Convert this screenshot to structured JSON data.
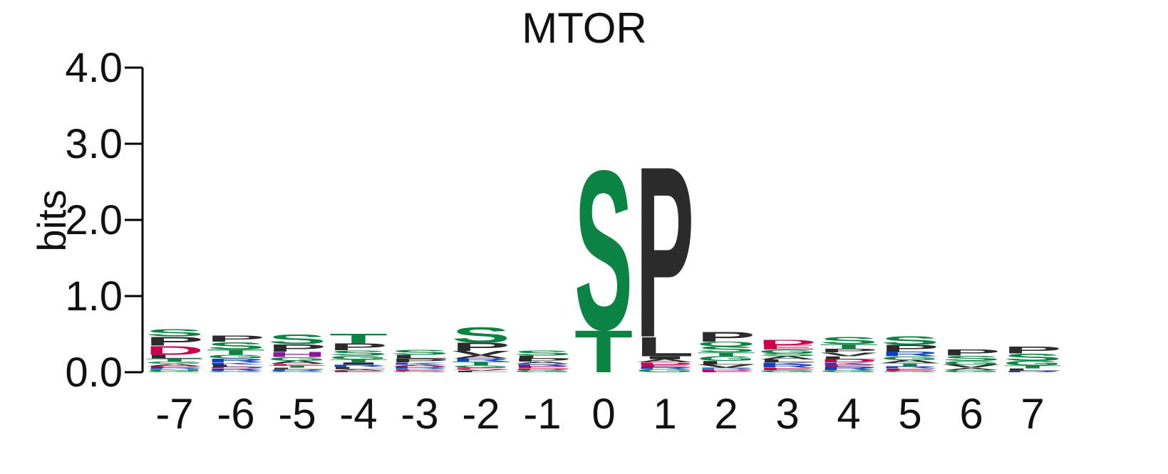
{
  "chart_data": {
    "type": "sequence_logo",
    "title": "MTOR",
    "xlabel": "",
    "ylabel": "bits",
    "ylim": [
      0,
      4
    ],
    "y_ticks": [
      "0.0",
      "1.0",
      "2.0",
      "3.0",
      "4.0"
    ],
    "categories": [
      "-7",
      "-6",
      "-5",
      "-4",
      "-3",
      "-2",
      "-1",
      "0",
      "1",
      "2",
      "3",
      "4",
      "5",
      "6",
      "7"
    ],
    "colors": {
      "S": "#0b8443",
      "T": "#0b8443",
      "G": "#0b8443",
      "Y": "#0b8443",
      "C": "#0b8443",
      "N": "#0b8443",
      "Q": "#0b8443",
      "P": "#2b2b2b",
      "L": "#2b2b2b",
      "V": "#2b2b2b",
      "I": "#2b2b2b",
      "A": "#2b2b2b",
      "M": "#2b2b2b",
      "W": "#2b2b2b",
      "F": "#2b2b2b",
      "D": "#c8004b",
      "E": "#c8004b",
      "R": "#1140c0",
      "K": "#1140c0",
      "H": "#8a1a9a"
    },
    "positions": [
      {
        "pos": "-7",
        "stack": [
          [
            "G",
            0.02
          ],
          [
            "N",
            0.02
          ],
          [
            "R",
            0.02
          ],
          [
            "E",
            0.02
          ],
          [
            "A",
            0.03
          ],
          [
            "G",
            0.03
          ],
          [
            "T",
            0.04
          ],
          [
            "L",
            0.05
          ],
          [
            "D",
            0.12
          ],
          [
            "P",
            0.12
          ],
          [
            "S",
            0.1
          ]
        ]
      },
      {
        "pos": "-6",
        "stack": [
          [
            "G",
            0.02
          ],
          [
            "R",
            0.03
          ],
          [
            "D",
            0.02
          ],
          [
            "L",
            0.03
          ],
          [
            "K",
            0.03
          ],
          [
            "R",
            0.05
          ],
          [
            "G",
            0.05
          ],
          [
            "T",
            0.07
          ],
          [
            "S",
            0.1
          ],
          [
            "P",
            0.08
          ]
        ]
      },
      {
        "pos": "-5",
        "stack": [
          [
            "G",
            0.02
          ],
          [
            "R",
            0.02
          ],
          [
            "L",
            0.02
          ],
          [
            "T",
            0.03
          ],
          [
            "E",
            0.02
          ],
          [
            "A",
            0.04
          ],
          [
            "G",
            0.05
          ],
          [
            "H",
            0.07
          ],
          [
            "P",
            0.1
          ],
          [
            "S",
            0.13
          ]
        ]
      },
      {
        "pos": "-4",
        "stack": [
          [
            "E",
            0.02
          ],
          [
            "A",
            0.02
          ],
          [
            "L",
            0.03
          ],
          [
            "R",
            0.03
          ],
          [
            "I",
            0.03
          ],
          [
            "T",
            0.04
          ],
          [
            "G",
            0.05
          ],
          [
            "S",
            0.07
          ],
          [
            "P",
            0.09
          ],
          [
            "T",
            0.13
          ]
        ]
      },
      {
        "pos": "-3",
        "stack": [
          [
            "G",
            0.02
          ],
          [
            "E",
            0.02
          ],
          [
            "R",
            0.02
          ],
          [
            "D",
            0.02
          ],
          [
            "A",
            0.02
          ],
          [
            "K",
            0.03
          ],
          [
            "P",
            0.05
          ],
          [
            "L",
            0.05
          ],
          [
            "S",
            0.07
          ]
        ]
      },
      {
        "pos": "-2",
        "stack": [
          [
            "L",
            0.02
          ],
          [
            "V",
            0.02
          ],
          [
            "E",
            0.02
          ],
          [
            "G",
            0.03
          ],
          [
            "T",
            0.05
          ],
          [
            "R",
            0.04
          ],
          [
            "A",
            0.04
          ],
          [
            "V",
            0.06
          ],
          [
            "P",
            0.11
          ],
          [
            "S",
            0.21
          ]
        ]
      },
      {
        "pos": "-1",
        "stack": [
          [
            "G",
            0.03
          ],
          [
            "D",
            0.02
          ],
          [
            "E",
            0.03
          ],
          [
            "R",
            0.03
          ],
          [
            "A",
            0.03
          ],
          [
            "P",
            0.04
          ],
          [
            "L",
            0.04
          ],
          [
            "S",
            0.07
          ]
        ]
      },
      {
        "pos": "0",
        "stack": [
          [
            "T",
            0.57
          ],
          [
            "S",
            2.15
          ]
        ]
      },
      {
        "pos": "1",
        "stack": [
          [
            "G",
            0.04
          ],
          [
            "R",
            0.03
          ],
          [
            "E",
            0.03
          ],
          [
            "D",
            0.03
          ],
          [
            "A",
            0.04
          ],
          [
            "I",
            0.04
          ],
          [
            "L",
            0.26
          ],
          [
            "P",
            2.31
          ]
        ]
      },
      {
        "pos": "2",
        "stack": [
          [
            "E",
            0.02
          ],
          [
            "D",
            0.02
          ],
          [
            "R",
            0.02
          ],
          [
            "V",
            0.04
          ],
          [
            "L",
            0.05
          ],
          [
            "G",
            0.06
          ],
          [
            "T",
            0.05
          ],
          [
            "S",
            0.08
          ],
          [
            "Q",
            0.06
          ],
          [
            "P",
            0.13
          ]
        ]
      },
      {
        "pos": "3",
        "stack": [
          [
            "G",
            0.03
          ],
          [
            "E",
            0.03
          ],
          [
            "R",
            0.04
          ],
          [
            "K",
            0.03
          ],
          [
            "L",
            0.04
          ],
          [
            "A",
            0.04
          ],
          [
            "S",
            0.04
          ],
          [
            "G",
            0.05
          ],
          [
            "E",
            0.06
          ],
          [
            "D",
            0.07
          ]
        ]
      },
      {
        "pos": "4",
        "stack": [
          [
            "G",
            0.03
          ],
          [
            "R",
            0.04
          ],
          [
            "E",
            0.03
          ],
          [
            "K",
            0.03
          ],
          [
            "D",
            0.04
          ],
          [
            "L",
            0.04
          ],
          [
            "V",
            0.05
          ],
          [
            "P",
            0.05
          ],
          [
            "T",
            0.06
          ],
          [
            "S",
            0.1
          ]
        ]
      },
      {
        "pos": "5",
        "stack": [
          [
            "G",
            0.02
          ],
          [
            "E",
            0.03
          ],
          [
            "R",
            0.03
          ],
          [
            "T",
            0.04
          ],
          [
            "A",
            0.04
          ],
          [
            "G",
            0.05
          ],
          [
            "R",
            0.06
          ],
          [
            "P",
            0.09
          ],
          [
            "S",
            0.12
          ]
        ]
      },
      {
        "pos": "6",
        "stack": [
          [
            "G",
            0.03
          ],
          [
            "A",
            0.03
          ],
          [
            "V",
            0.04
          ],
          [
            "G",
            0.05
          ],
          [
            "S",
            0.07
          ],
          [
            "P",
            0.08
          ]
        ]
      },
      {
        "pos": "7",
        "stack": [
          [
            "R",
            0.02
          ],
          [
            "L",
            0.03
          ],
          [
            "T",
            0.04
          ],
          [
            "G",
            0.06
          ],
          [
            "S",
            0.1
          ],
          [
            "P",
            0.09
          ]
        ]
      }
    ]
  }
}
